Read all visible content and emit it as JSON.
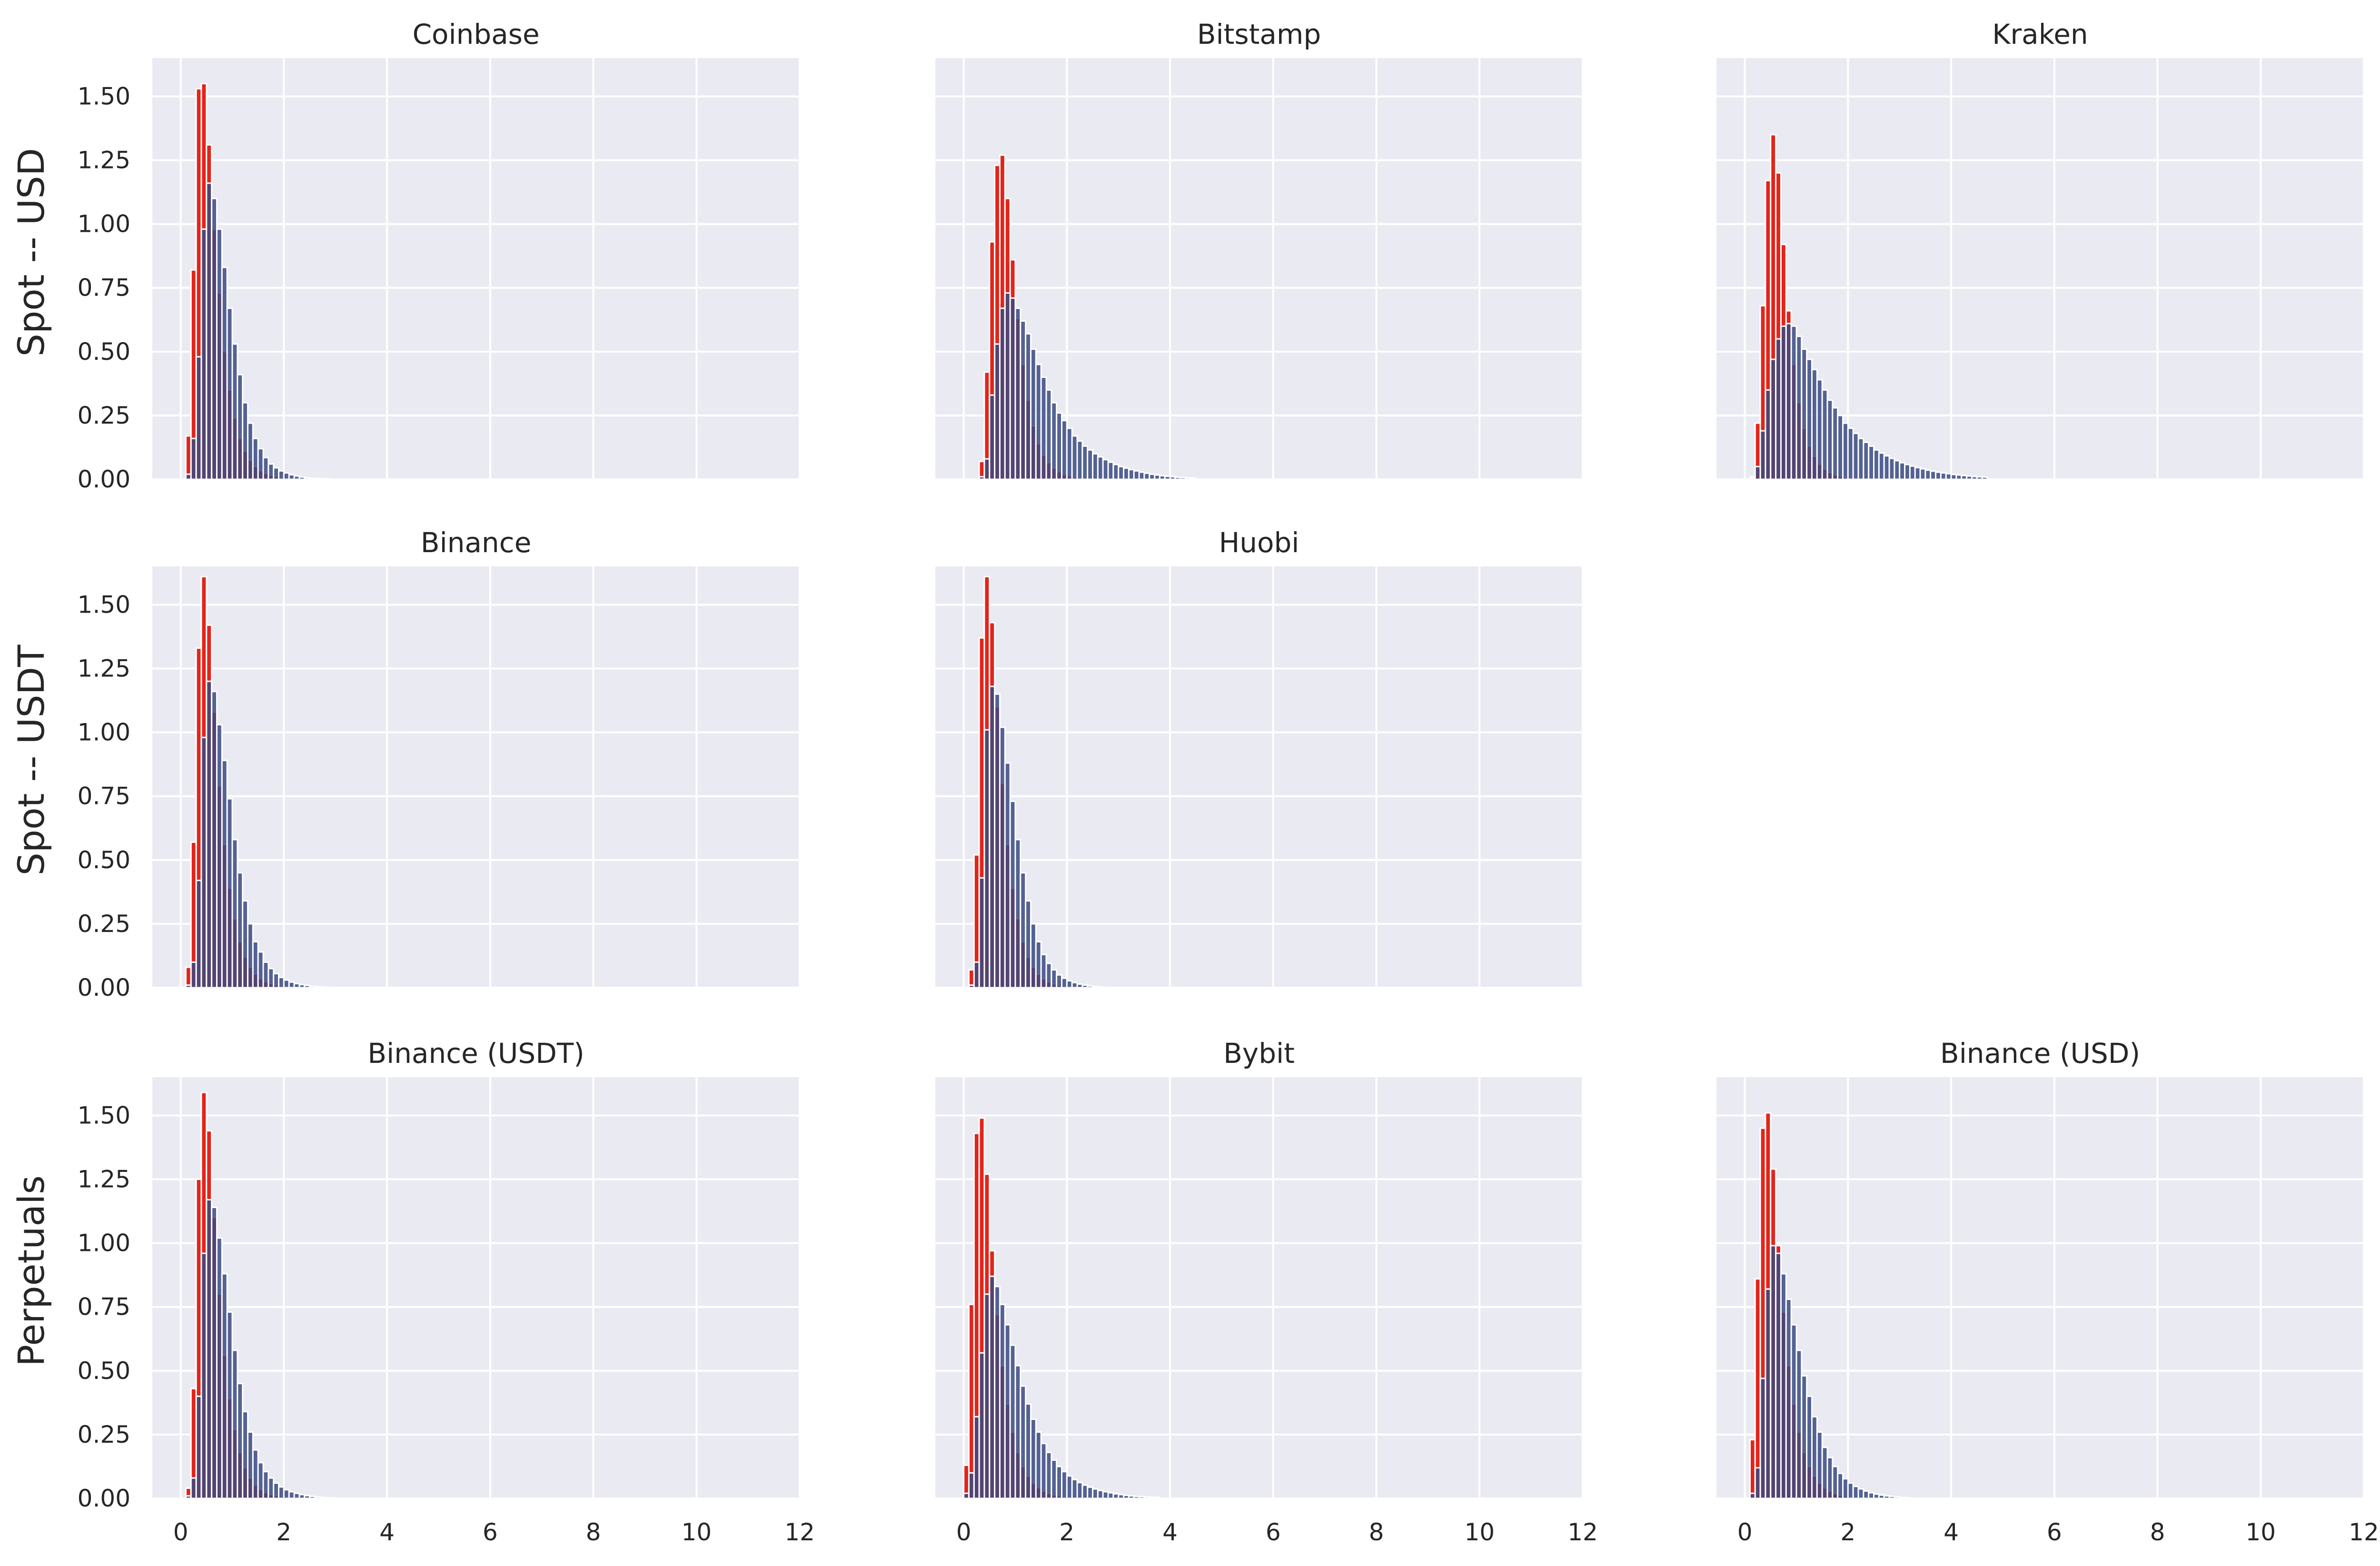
{
  "figure": {
    "row_labels": [
      "Spot -- USD",
      "Spot -- USDT",
      "Perpetuals"
    ]
  },
  "axes": {
    "x_ticks": [
      "0",
      "2",
      "4",
      "6",
      "8",
      "10",
      "12"
    ],
    "y_ticks": [
      "0.00",
      "0.25",
      "0.50",
      "0.75",
      "1.00",
      "1.25",
      "1.50"
    ]
  },
  "colors": {
    "axes_background": "#eaeaf2",
    "grid": "#ffffff",
    "series_red": "#e3241a",
    "series_navy": "#3a4a82"
  },
  "chart_data": [
    {
      "type": "bar",
      "title": "Coinbase",
      "row": 0,
      "col": 0,
      "xlim": [
        -0.55,
        12
      ],
      "ylim": [
        0,
        1.65
      ],
      "grid": true,
      "series": [
        {
          "x_start": 0.1,
          "bin_width": 0.1,
          "values": [
            0.17,
            0.82,
            1.53,
            1.55,
            1.31,
            0.98,
            0.73,
            0.5,
            0.35,
            0.24,
            0.16,
            0.11,
            0.075,
            0.05,
            0.034,
            0.023,
            0.016,
            0.011,
            0.007,
            0.005,
            0.003,
            0.002
          ]
        },
        {
          "x_start": 0.1,
          "bin_width": 0.1,
          "values": [
            0.02,
            0.16,
            0.48,
            0.98,
            1.16,
            1.1,
            0.98,
            0.83,
            0.67,
            0.53,
            0.41,
            0.3,
            0.22,
            0.16,
            0.12,
            0.085,
            0.06,
            0.045,
            0.033,
            0.025,
            0.018,
            0.013,
            0.009,
            0.006,
            0.004,
            0.003,
            0.002,
            0.002
          ]
        }
      ]
    },
    {
      "type": "bar",
      "title": "Bitstamp",
      "row": 0,
      "col": 1,
      "xlim": [
        -0.55,
        12
      ],
      "ylim": [
        0,
        1.65
      ],
      "grid": true,
      "series": [
        {
          "x_start": 0.3,
          "bin_width": 0.1,
          "values": [
            0.07,
            0.42,
            0.93,
            1.23,
            1.27,
            1.1,
            0.86,
            0.63,
            0.45,
            0.31,
            0.21,
            0.14,
            0.095,
            0.065,
            0.044,
            0.03,
            0.02,
            0.013,
            0.009,
            0.006,
            0.004,
            0.003
          ]
        },
        {
          "x_start": 0.3,
          "bin_width": 0.1,
          "values": [
            0.01,
            0.08,
            0.33,
            0.53,
            0.67,
            0.73,
            0.71,
            0.67,
            0.62,
            0.57,
            0.51,
            0.45,
            0.4,
            0.35,
            0.3,
            0.26,
            0.23,
            0.2,
            0.17,
            0.15,
            0.13,
            0.115,
            0.1,
            0.088,
            0.077,
            0.067,
            0.058,
            0.05,
            0.044,
            0.038,
            0.033,
            0.028,
            0.024,
            0.02,
            0.017,
            0.014,
            0.012,
            0.01,
            0.008,
            0.007,
            0.006,
            0.005
          ]
        }
      ]
    },
    {
      "type": "bar",
      "title": "Kraken",
      "row": 0,
      "col": 2,
      "xlim": [
        -0.55,
        12
      ],
      "ylim": [
        0,
        1.65
      ],
      "grid": true,
      "series": [
        {
          "x_start": 0.1,
          "bin_width": 0.1,
          "values": [
            0.01,
            0.22,
            0.68,
            1.17,
            1.35,
            1.2,
            0.92,
            0.66,
            0.45,
            0.3,
            0.2,
            0.13,
            0.09,
            0.06,
            0.04,
            0.027,
            0.018,
            0.012,
            0.008,
            0.005,
            0.003
          ]
        },
        {
          "x_start": 0.1,
          "bin_width": 0.1,
          "values": [
            0.005,
            0.05,
            0.19,
            0.35,
            0.47,
            0.55,
            0.6,
            0.61,
            0.6,
            0.56,
            0.51,
            0.47,
            0.43,
            0.39,
            0.35,
            0.31,
            0.28,
            0.25,
            0.22,
            0.2,
            0.18,
            0.16,
            0.145,
            0.13,
            0.115,
            0.103,
            0.092,
            0.082,
            0.073,
            0.065,
            0.058,
            0.052,
            0.046,
            0.041,
            0.036,
            0.032,
            0.028,
            0.025,
            0.022,
            0.019,
            0.017,
            0.015,
            0.013,
            0.011,
            0.01,
            0.009
          ]
        }
      ]
    },
    {
      "type": "bar",
      "title": "Binance",
      "row": 1,
      "col": 0,
      "xlim": [
        -0.55,
        12
      ],
      "ylim": [
        0,
        1.65
      ],
      "grid": true,
      "series": [
        {
          "x_start": 0.1,
          "bin_width": 0.1,
          "values": [
            0.08,
            0.57,
            1.33,
            1.61,
            1.42,
            1.08,
            0.79,
            0.56,
            0.39,
            0.27,
            0.18,
            0.12,
            0.08,
            0.054,
            0.036,
            0.024,
            0.016,
            0.011,
            0.007,
            0.005,
            0.003
          ]
        },
        {
          "x_start": 0.1,
          "bin_width": 0.1,
          "values": [
            0.01,
            0.1,
            0.42,
            0.98,
            1.2,
            1.16,
            1.03,
            0.89,
            0.74,
            0.58,
            0.45,
            0.34,
            0.25,
            0.18,
            0.14,
            0.1,
            0.075,
            0.055,
            0.04,
            0.03,
            0.022,
            0.016,
            0.012,
            0.009,
            0.006,
            0.004,
            0.003,
            0.002
          ]
        }
      ]
    },
    {
      "type": "bar",
      "title": "Huobi",
      "row": 1,
      "col": 1,
      "xlim": [
        -0.55,
        12
      ],
      "ylim": [
        0,
        1.65
      ],
      "grid": true,
      "series": [
        {
          "x_start": 0.1,
          "bin_width": 0.1,
          "values": [
            0.07,
            0.52,
            1.37,
            1.61,
            1.43,
            1.1,
            0.8,
            0.56,
            0.39,
            0.27,
            0.18,
            0.12,
            0.08,
            0.053,
            0.035,
            0.023,
            0.015,
            0.01,
            0.007,
            0.005,
            0.003
          ]
        },
        {
          "x_start": 0.1,
          "bin_width": 0.1,
          "values": [
            0.01,
            0.1,
            0.43,
            1.01,
            1.18,
            1.15,
            1.02,
            0.88,
            0.73,
            0.58,
            0.45,
            0.34,
            0.25,
            0.18,
            0.13,
            0.095,
            0.07,
            0.05,
            0.037,
            0.027,
            0.02,
            0.014,
            0.01,
            0.007,
            0.005,
            0.003,
            0.002
          ]
        }
      ]
    },
    {
      "type": "bar",
      "title": "Binance (USDT)",
      "row": 2,
      "col": 0,
      "xlim": [
        -0.55,
        12
      ],
      "ylim": [
        0,
        1.65
      ],
      "grid": true,
      "series": [
        {
          "x_start": 0.1,
          "bin_width": 0.1,
          "values": [
            0.04,
            0.43,
            1.25,
            1.59,
            1.44,
            1.1,
            0.8,
            0.56,
            0.39,
            0.27,
            0.18,
            0.12,
            0.08,
            0.053,
            0.035,
            0.023,
            0.015,
            0.01,
            0.007,
            0.005,
            0.003
          ]
        },
        {
          "x_start": 0.1,
          "bin_width": 0.1,
          "values": [
            0.01,
            0.08,
            0.4,
            0.96,
            1.17,
            1.14,
            1.02,
            0.88,
            0.73,
            0.58,
            0.45,
            0.34,
            0.26,
            0.19,
            0.14,
            0.105,
            0.08,
            0.06,
            0.045,
            0.034,
            0.026,
            0.02,
            0.015,
            0.011,
            0.008,
            0.006,
            0.004,
            0.003,
            0.002
          ]
        }
      ]
    },
    {
      "type": "bar",
      "title": "Bybit",
      "row": 2,
      "col": 1,
      "xlim": [
        -0.55,
        12
      ],
      "ylim": [
        0,
        1.65
      ],
      "grid": true,
      "series": [
        {
          "x_start": 0.0,
          "bin_width": 0.1,
          "values": [
            0.13,
            0.76,
            1.43,
            1.49,
            1.27,
            0.97,
            0.72,
            0.52,
            0.37,
            0.26,
            0.18,
            0.125,
            0.087,
            0.06,
            0.042,
            0.029,
            0.02,
            0.014,
            0.01,
            0.007,
            0.005,
            0.003
          ]
        },
        {
          "x_start": 0.0,
          "bin_width": 0.1,
          "values": [
            0.02,
            0.1,
            0.32,
            0.57,
            0.8,
            0.87,
            0.83,
            0.76,
            0.68,
            0.6,
            0.52,
            0.44,
            0.37,
            0.31,
            0.26,
            0.215,
            0.18,
            0.15,
            0.125,
            0.105,
            0.088,
            0.074,
            0.062,
            0.052,
            0.044,
            0.037,
            0.031,
            0.026,
            0.022,
            0.018,
            0.015,
            0.012,
            0.01,
            0.008,
            0.007,
            0.006,
            0.005,
            0.004
          ]
        }
      ]
    },
    {
      "type": "bar",
      "title": "Binance (USD)",
      "row": 2,
      "col": 2,
      "xlim": [
        -0.55,
        12
      ],
      "ylim": [
        0,
        1.65
      ],
      "grid": true,
      "series": [
        {
          "x_start": 0.1,
          "bin_width": 0.1,
          "values": [
            0.23,
            0.86,
            1.45,
            1.51,
            1.29,
            0.99,
            0.73,
            0.52,
            0.37,
            0.26,
            0.18,
            0.125,
            0.087,
            0.06,
            0.041,
            0.028,
            0.019,
            0.013,
            0.009,
            0.006,
            0.004,
            0.003
          ]
        },
        {
          "x_start": 0.1,
          "bin_width": 0.1,
          "values": [
            0.02,
            0.12,
            0.47,
            0.82,
            0.99,
            0.96,
            0.88,
            0.78,
            0.68,
            0.58,
            0.48,
            0.4,
            0.32,
            0.26,
            0.2,
            0.16,
            0.125,
            0.098,
            0.077,
            0.06,
            0.047,
            0.037,
            0.029,
            0.022,
            0.017,
            0.013,
            0.01,
            0.008,
            0.006,
            0.004,
            0.003
          ]
        }
      ]
    }
  ]
}
